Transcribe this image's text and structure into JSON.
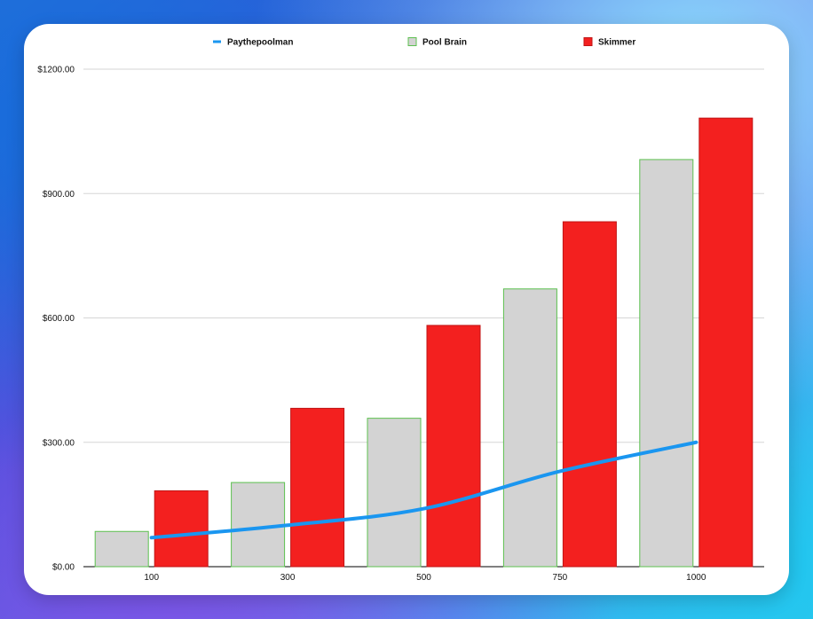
{
  "chart_data": {
    "type": "bar",
    "categories": [
      "100",
      "300",
      "500",
      "750",
      "1000"
    ],
    "ylim": [
      0,
      1200
    ],
    "yticks": [
      "$0.00",
      "$300.00",
      "$600.00",
      "$900.00",
      "$1200.00"
    ],
    "grid": true,
    "legend_position": "top",
    "series": [
      {
        "name": "Pool Brain",
        "kind": "bar",
        "color": "#d3d3d3",
        "edge_color": "#5cc04f",
        "values": [
          85,
          203,
          358,
          670,
          982
        ]
      },
      {
        "name": "Skimmer",
        "kind": "bar",
        "color": "#f3201f",
        "edge_color": "#c01515",
        "values": [
          183,
          382,
          582,
          832,
          1082
        ]
      },
      {
        "name": "Paythepoolman",
        "kind": "line",
        "color": "#1a96f0",
        "values": [
          70,
          100,
          140,
          230,
          300
        ]
      }
    ]
  }
}
